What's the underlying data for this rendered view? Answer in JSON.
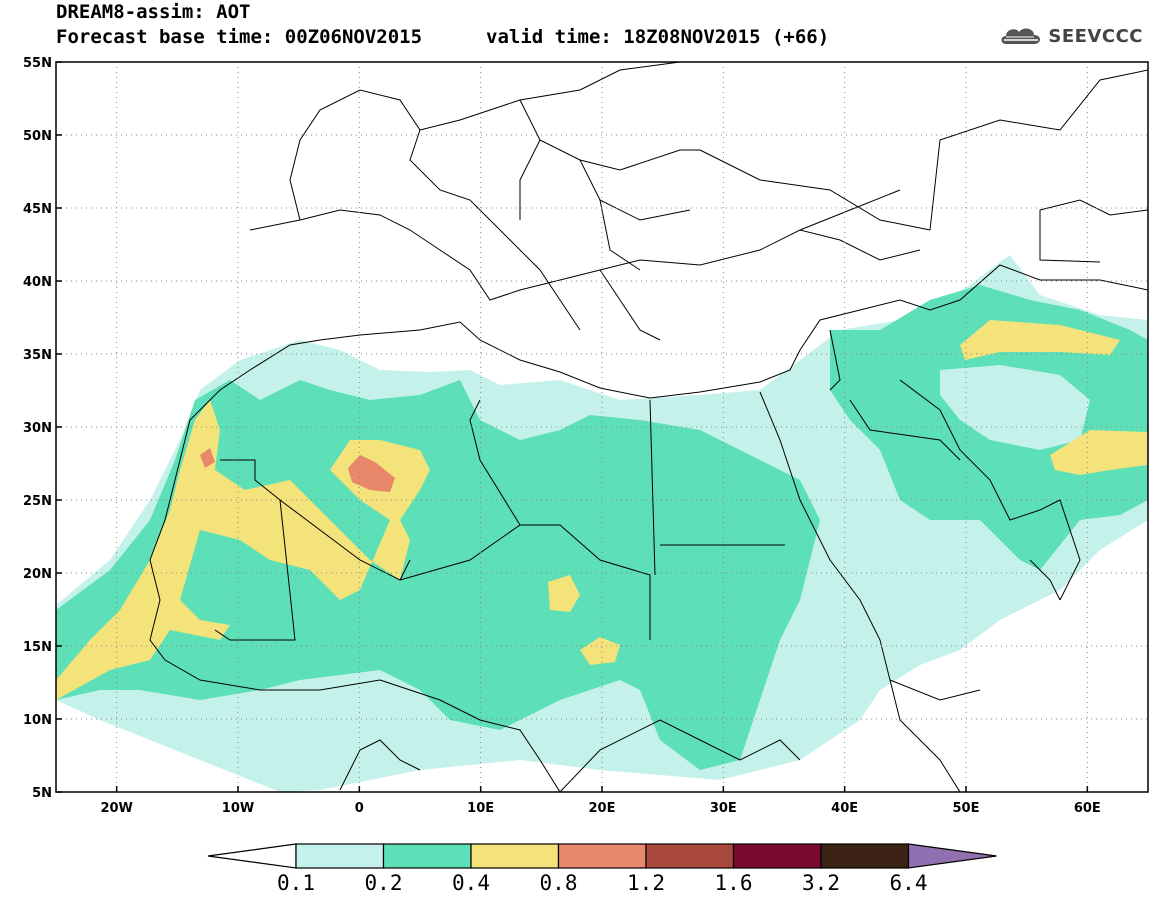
{
  "header": {
    "line1": "DREAM8-assim: AOT",
    "base_time": "Forecast base time: 00Z06NOV2015",
    "valid_time": "valid time: 18Z08NOV2015 (+66)"
  },
  "logo": {
    "text": "SEEVCCC",
    "icon": "cloud-logo-icon"
  },
  "map": {
    "lon_range": [
      -25,
      65
    ],
    "lat_range": [
      5,
      55
    ],
    "lon_ticks": [
      {
        "value": -20,
        "label": "20W"
      },
      {
        "value": -10,
        "label": "10W"
      },
      {
        "value": 0,
        "label": "0"
      },
      {
        "value": 10,
        "label": "10E"
      },
      {
        "value": 20,
        "label": "20E"
      },
      {
        "value": 30,
        "label": "30E"
      },
      {
        "value": 40,
        "label": "40E"
      },
      {
        "value": 50,
        "label": "50E"
      },
      {
        "value": 60,
        "label": "60E"
      }
    ],
    "lat_ticks": [
      {
        "value": 55,
        "label": "55N"
      },
      {
        "value": 50,
        "label": "50N"
      },
      {
        "value": 45,
        "label": "45N"
      },
      {
        "value": 40,
        "label": "40N"
      },
      {
        "value": 35,
        "label": "35N"
      },
      {
        "value": 30,
        "label": "30N"
      },
      {
        "value": 25,
        "label": "25N"
      },
      {
        "value": 20,
        "label": "20N"
      },
      {
        "value": 15,
        "label": "15N"
      },
      {
        "value": 10,
        "label": "10N"
      },
      {
        "value": 5,
        "label": "5N"
      }
    ],
    "grid": "dotted"
  },
  "colorbar": {
    "bins": [
      {
        "color": "#c4f2ea"
      },
      {
        "color": "#5ddfb7"
      },
      {
        "color": "#f4e27b"
      },
      {
        "color": "#e8876a"
      },
      {
        "color": "#a9493e"
      },
      {
        "color": "#7a0a2e"
      },
      {
        "color": "#3b2214"
      }
    ],
    "under_color": "#ffffff",
    "over_color": "#9070b0",
    "labels": [
      "0.1",
      "0.2",
      "0.4",
      "0.8",
      "1.2",
      "1.6",
      "3.2",
      "6.4"
    ]
  }
}
